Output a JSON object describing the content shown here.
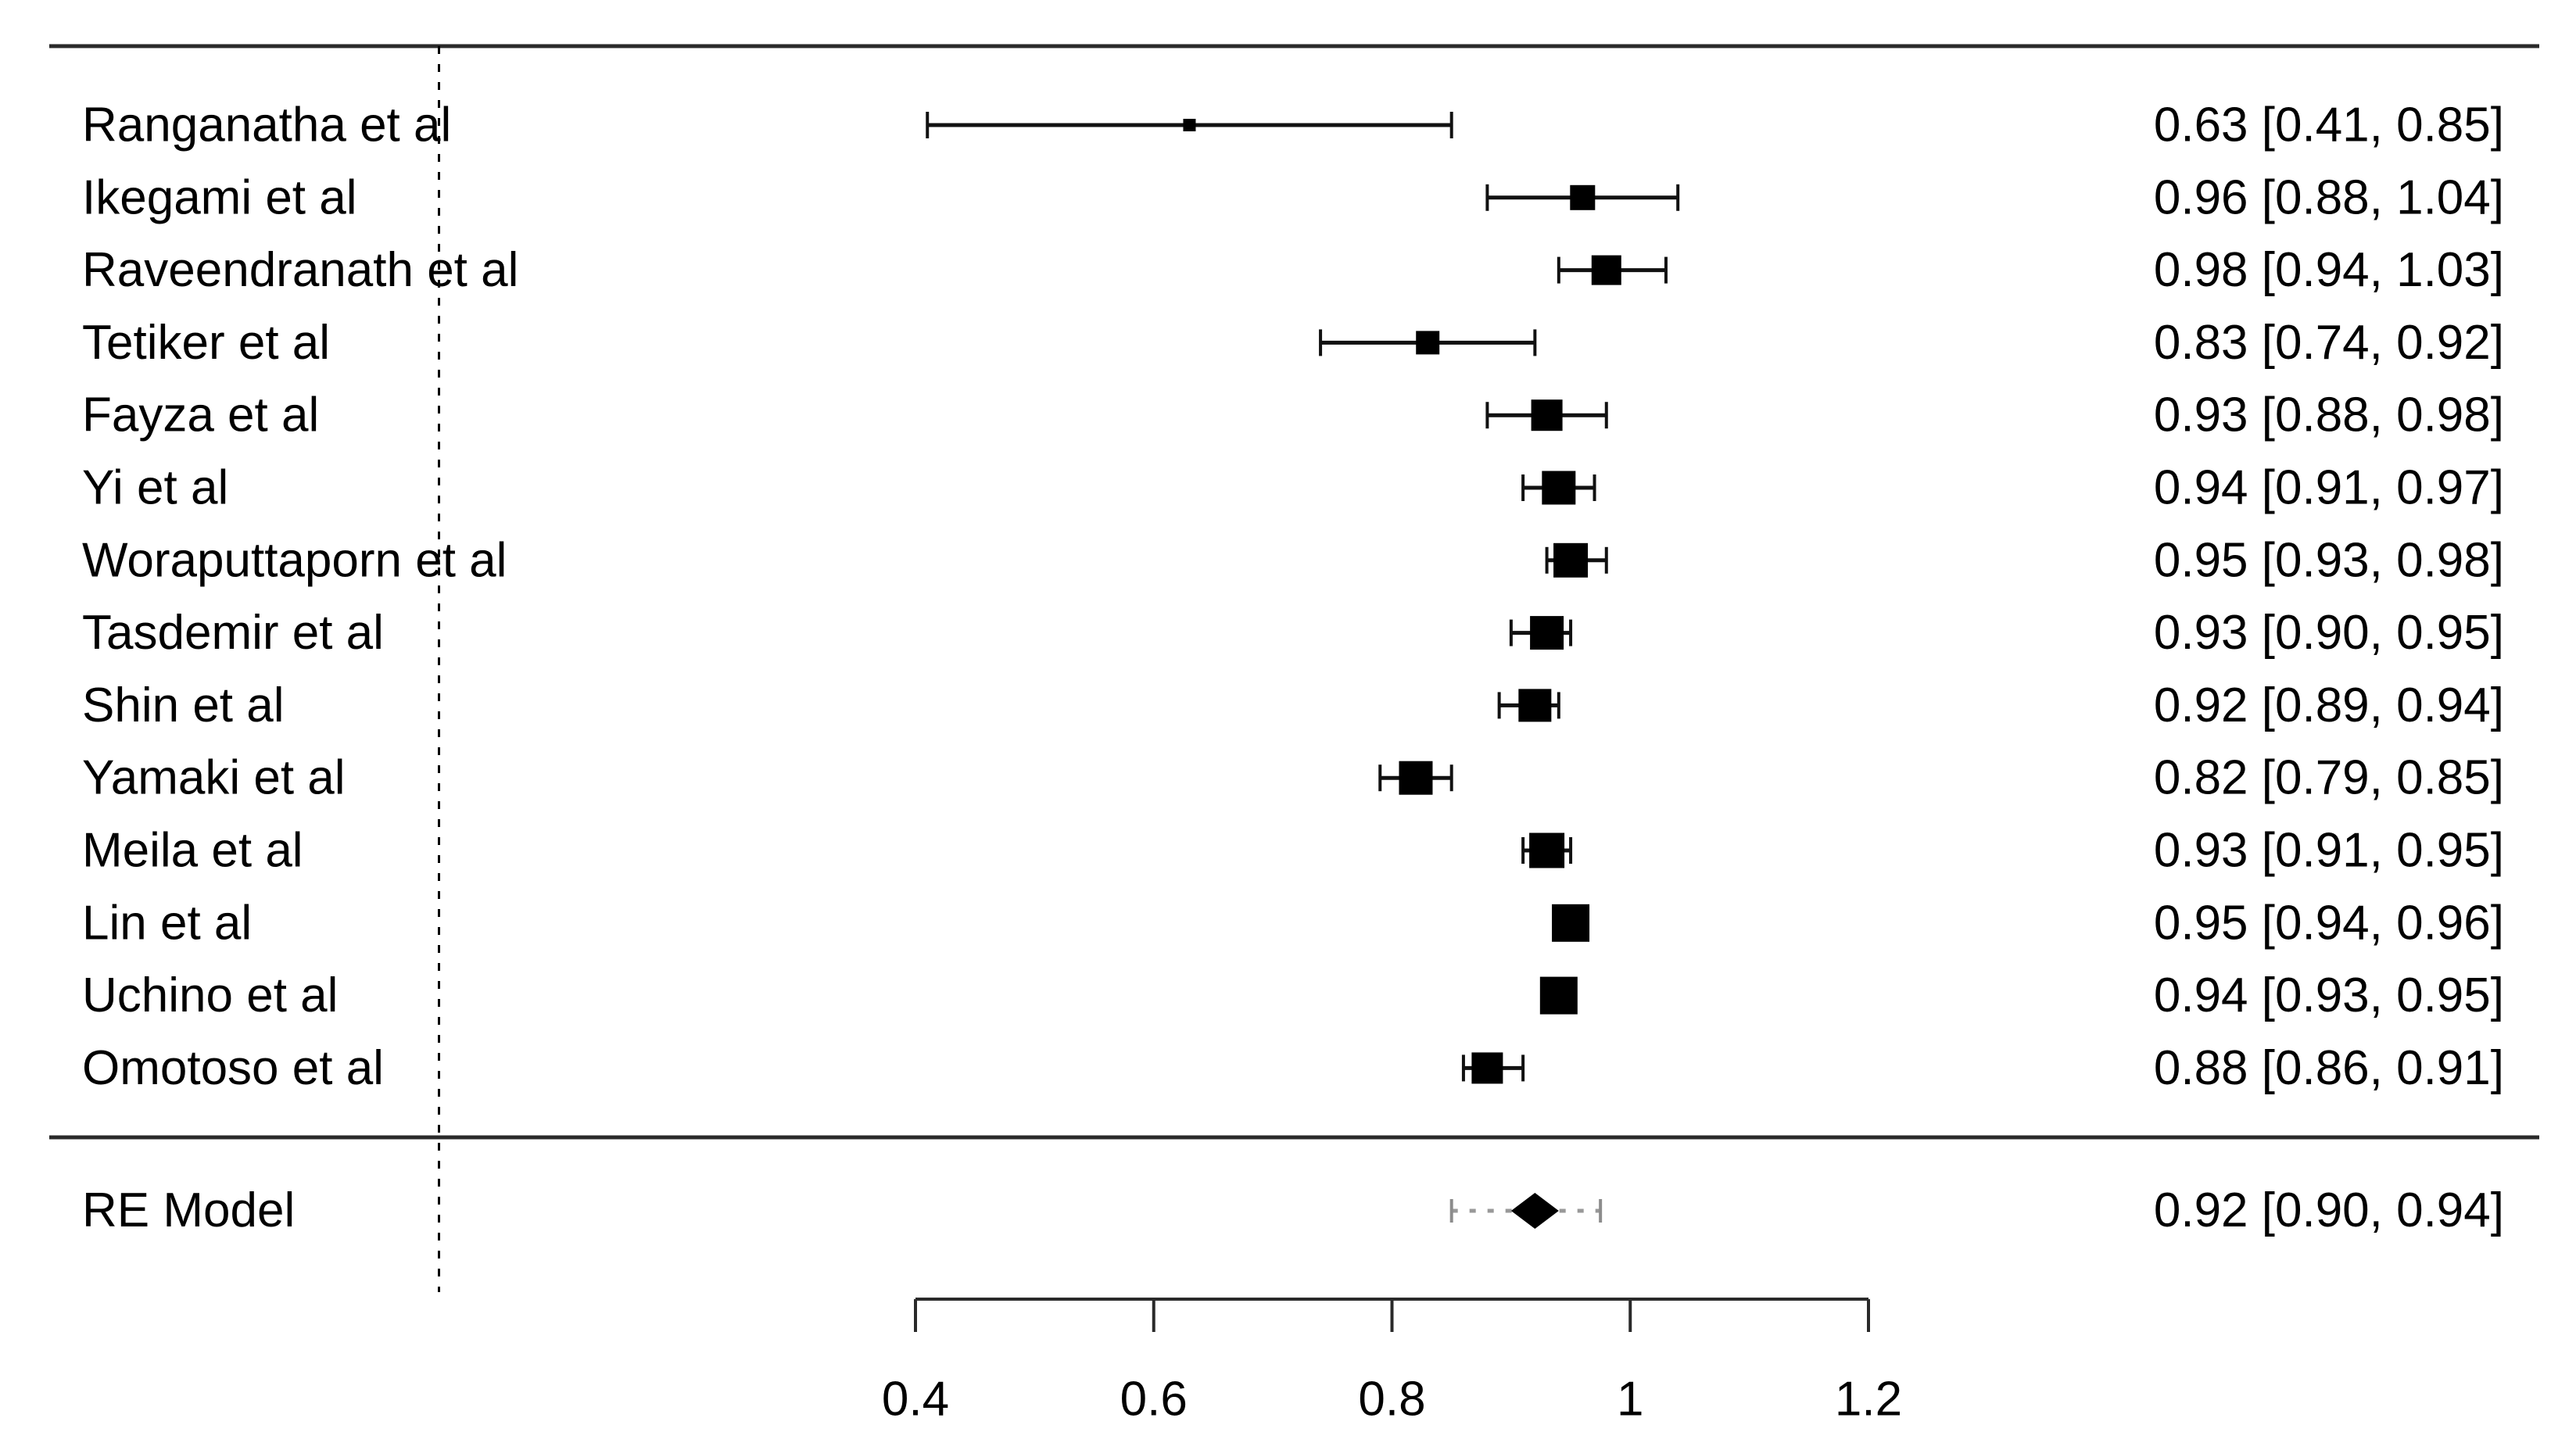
{
  "page": {
    "background": "#ffffff",
    "description": "Forest plot of a meta-analysis with 14 studies and a random-effects summary"
  },
  "colors": {
    "text": "#000000",
    "rule": "#2a2a2a",
    "marker": "#000000",
    "whisker": "#111111",
    "refline": "#000000",
    "prediction_interval": "#999999",
    "prediction_cap": "#8c8c8c"
  },
  "chart_data": {
    "type": "scatter",
    "subtype": "forest-plot",
    "title": "",
    "xlabel": "",
    "ylabel": "",
    "x_axis": {
      "tick_values": [
        0.4,
        0.6,
        0.8,
        1.0,
        1.2
      ],
      "tick_labels": [
        "0.4",
        "0.6",
        "0.8",
        "1",
        "1.2"
      ],
      "axis_range": [
        0.4,
        1.2
      ],
      "refline_value": 0,
      "grid": false
    },
    "studies": [
      {
        "label": "Ranganatha et al",
        "est": 0.63,
        "ci_lb": 0.41,
        "ci_ub": 0.85,
        "annotation": "0.63 [0.41, 0.85]",
        "marker_size_px": 16
      },
      {
        "label": "Ikegami et al",
        "est": 0.96,
        "ci_lb": 0.88,
        "ci_ub": 1.04,
        "annotation": "0.96 [0.88, 1.04]",
        "marker_size_px": 32
      },
      {
        "label": "Raveendranath et al",
        "est": 0.98,
        "ci_lb": 0.94,
        "ci_ub": 1.03,
        "annotation": "0.98 [0.94, 1.03]",
        "marker_size_px": 38
      },
      {
        "label": "Tetiker et al",
        "est": 0.83,
        "ci_lb": 0.74,
        "ci_ub": 0.92,
        "annotation": "0.83 [0.74, 0.92]",
        "marker_size_px": 30
      },
      {
        "label": "Fayza et al",
        "est": 0.93,
        "ci_lb": 0.88,
        "ci_ub": 0.98,
        "annotation": "0.93 [0.88, 0.98]",
        "marker_size_px": 40
      },
      {
        "label": "Yi et al",
        "est": 0.94,
        "ci_lb": 0.91,
        "ci_ub": 0.97,
        "annotation": "0.94 [0.91, 0.97]",
        "marker_size_px": 43
      },
      {
        "label": "Woraputtaporn et al",
        "est": 0.95,
        "ci_lb": 0.93,
        "ci_ub": 0.98,
        "annotation": "0.95 [0.93, 0.98]",
        "marker_size_px": 44
      },
      {
        "label": "Tasdemir et al",
        "est": 0.93,
        "ci_lb": 0.9,
        "ci_ub": 0.95,
        "annotation": "0.93 [0.90, 0.95]",
        "marker_size_px": 43
      },
      {
        "label": "Shin et al",
        "est": 0.92,
        "ci_lb": 0.89,
        "ci_ub": 0.94,
        "annotation": "0.92 [0.89, 0.94]",
        "marker_size_px": 42
      },
      {
        "label": "Yamaki et al",
        "est": 0.82,
        "ci_lb": 0.79,
        "ci_ub": 0.85,
        "annotation": "0.82 [0.79, 0.85]",
        "marker_size_px": 43
      },
      {
        "label": "Meila et al",
        "est": 0.93,
        "ci_lb": 0.91,
        "ci_ub": 0.95,
        "annotation": "0.93 [0.91, 0.95]",
        "marker_size_px": 45
      },
      {
        "label": "Lin et al",
        "est": 0.95,
        "ci_lb": 0.94,
        "ci_ub": 0.96,
        "annotation": "0.95 [0.94, 0.96]",
        "marker_size_px": 48
      },
      {
        "label": "Uchino et al",
        "est": 0.94,
        "ci_lb": 0.93,
        "ci_ub": 0.95,
        "annotation": "0.94 [0.93, 0.95]",
        "marker_size_px": 48
      },
      {
        "label": "Omotoso et al",
        "est": 0.88,
        "ci_lb": 0.86,
        "ci_ub": 0.91,
        "annotation": "0.88 [0.86, 0.91]",
        "marker_size_px": 40
      }
    ],
    "summary": {
      "label": "RE Model",
      "est": 0.92,
      "ci_lb": 0.9,
      "ci_ub": 0.94,
      "annotation": "0.92 [0.90, 0.94]",
      "pred_lb": 0.85,
      "pred_ub": 0.975
    },
    "legend": null
  }
}
